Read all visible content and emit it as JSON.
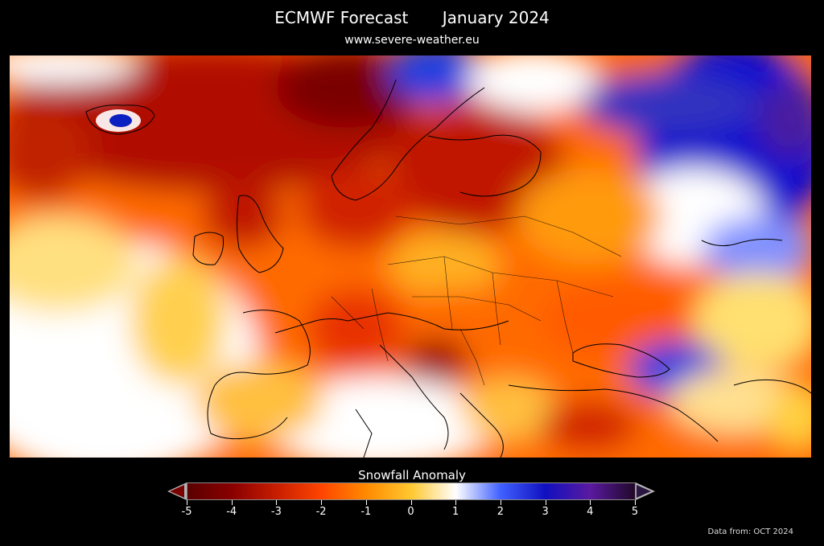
{
  "header": {
    "title_left": "ECMWF Forecast",
    "title_right": "January 2024",
    "subtitle": "www.severe-weather.eu"
  },
  "legend": {
    "title": "Snowfall Anomaly",
    "ticks": [
      "-5",
      "-4",
      "-3",
      "-2",
      "-1",
      "0",
      "1",
      "2",
      "3",
      "4",
      "5"
    ],
    "colors": [
      "#5a0000",
      "#8a0000",
      "#c81e00",
      "#ff4500",
      "#ff8a00",
      "#ffc830",
      "#ffffff",
      "#4060ff",
      "#1010c0",
      "#5a1aa0",
      "#200828"
    ]
  },
  "footer": {
    "source": "Data from: OCT 2024"
  }
}
